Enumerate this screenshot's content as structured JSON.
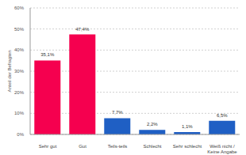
{
  "chart_data": {
    "type": "bar",
    "y_label": "Anteil der Befragten",
    "categories": [
      "Sehr gut",
      "Gut",
      "Teils-teils",
      "Schlecht",
      "Sehr schlecht",
      "Weiß nicht / Keine Angabe"
    ],
    "values": [
      35.1,
      47.4,
      7.7,
      2.2,
      1.1,
      6.5
    ],
    "value_labels": [
      "35,1%",
      "47,4%",
      "7,7%",
      "2,2%",
      "1,1%",
      "6,5%"
    ],
    "colors": [
      "#f5004f",
      "#f5004f",
      "#1f5fc4",
      "#1f5fc4",
      "#1f5fc4",
      "#1f5fc4"
    ],
    "ylim": [
      0,
      60
    ],
    "yticks": [
      {
        "value": 0,
        "label": "0%"
      },
      {
        "value": 10,
        "label": "10%"
      },
      {
        "value": 20,
        "label": "20%"
      },
      {
        "value": 30,
        "label": "30%"
      },
      {
        "value": 40,
        "label": "40%"
      },
      {
        "value": 50,
        "label": "50%"
      },
      {
        "value": 60,
        "label": "60%"
      }
    ],
    "grid": true,
    "data_labels": true
  }
}
